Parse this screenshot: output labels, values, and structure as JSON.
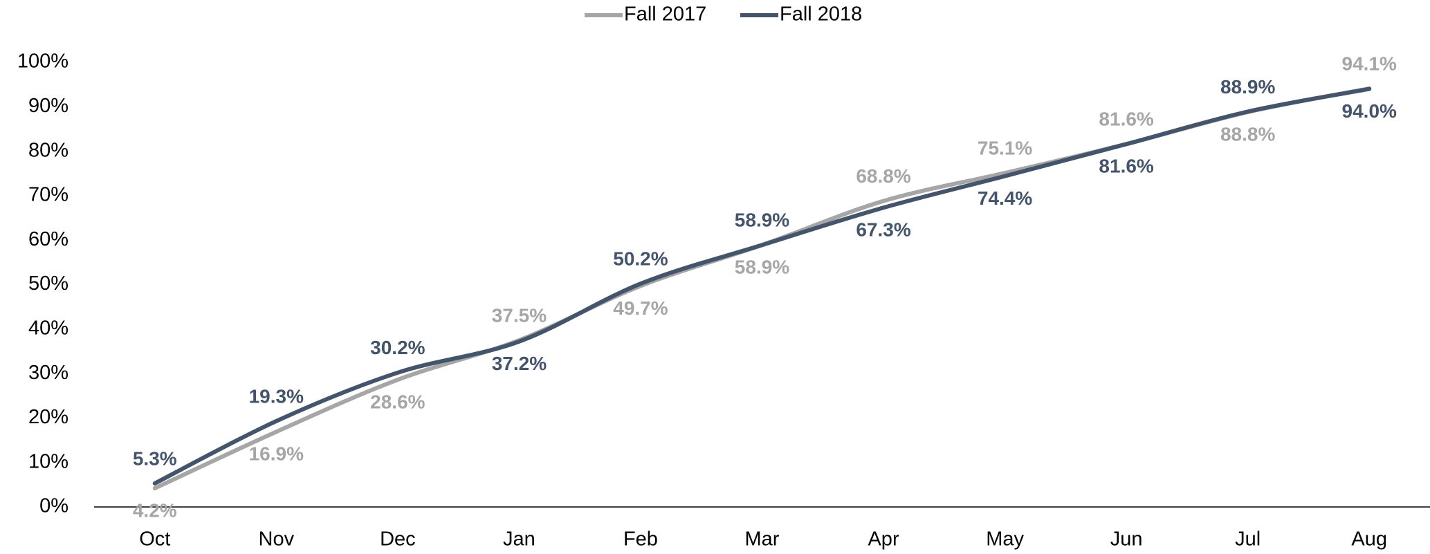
{
  "chart_data": {
    "type": "line",
    "categories": [
      "Oct",
      "Nov",
      "Dec",
      "Jan",
      "Feb",
      "Mar",
      "Apr",
      "May",
      "Jun",
      "Jul",
      "Aug"
    ],
    "series": [
      {
        "name": "Fall 2017",
        "color": "#a6a6a6",
        "values": [
          4.2,
          16.9,
          28.6,
          37.5,
          49.7,
          58.9,
          68.8,
          75.1,
          81.6,
          88.8,
          94.1
        ],
        "value_labels": [
          "4.2%",
          "16.9%",
          "28.6%",
          "37.5%",
          "49.7%",
          "58.9%",
          "68.8%",
          "75.1%",
          "81.6%",
          "88.8%",
          "94.1%"
        ],
        "label_position": [
          "below",
          "below",
          "below",
          "above",
          "below",
          "below",
          "above",
          "above",
          "above",
          "below",
          "above"
        ]
      },
      {
        "name": "Fall 2018",
        "color": "#44546a",
        "values": [
          5.3,
          19.3,
          30.2,
          37.2,
          50.2,
          58.9,
          67.3,
          74.4,
          81.6,
          88.9,
          94.0
        ],
        "value_labels": [
          "5.3%",
          "19.3%",
          "30.2%",
          "37.2%",
          "50.2%",
          "58.9%",
          "67.3%",
          "74.4%",
          "81.6%",
          "88.9%",
          "94.0%"
        ],
        "label_position": [
          "above",
          "above",
          "above",
          "below",
          "above",
          "above",
          "below",
          "below",
          "below",
          "above",
          "below"
        ]
      }
    ],
    "ylim": [
      0,
      100
    ],
    "yticks": [
      {
        "value": 0,
        "label": "0%"
      },
      {
        "value": 10,
        "label": "10%"
      },
      {
        "value": 20,
        "label": "20%"
      },
      {
        "value": 30,
        "label": "30%"
      },
      {
        "value": 40,
        "label": "40%"
      },
      {
        "value": 50,
        "label": "50%"
      },
      {
        "value": 60,
        "label": "60%"
      },
      {
        "value": 70,
        "label": "70%"
      },
      {
        "value": 80,
        "label": "80%"
      },
      {
        "value": 90,
        "label": "90%"
      },
      {
        "value": 100,
        "label": "100%"
      }
    ],
    "grid": false,
    "legend": "top",
    "smooth": true
  }
}
